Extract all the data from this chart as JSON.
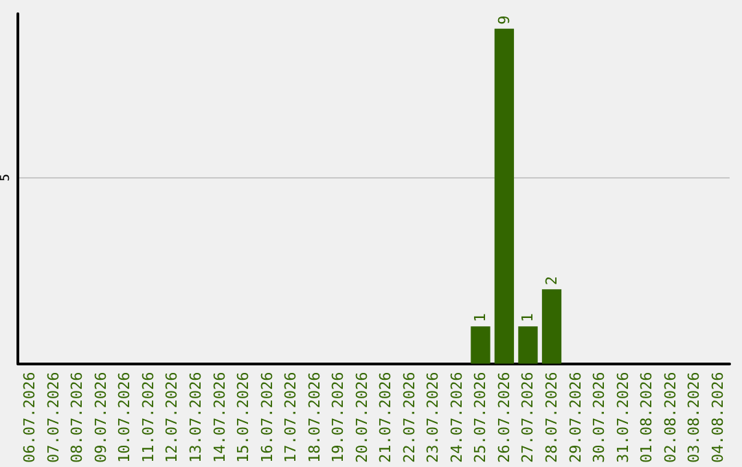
{
  "chart_data": {
    "type": "bar",
    "categories": [
      "06.07.2026",
      "07.07.2026",
      "08.07.2026",
      "09.07.2026",
      "10.07.2026",
      "11.07.2026",
      "12.07.2026",
      "13.07.2026",
      "14.07.2026",
      "15.07.2026",
      "16.07.2026",
      "17.07.2026",
      "18.07.2026",
      "19.07.2026",
      "20.07.2026",
      "21.07.2026",
      "22.07.2026",
      "23.07.2026",
      "24.07.2026",
      "25.07.2026",
      "26.07.2026",
      "27.07.2026",
      "28.07.2026",
      "29.07.2026",
      "30.07.2026",
      "31.07.2026",
      "01.08.2026",
      "02.08.2026",
      "03.08.2026",
      "04.08.2026"
    ],
    "values": [
      null,
      null,
      null,
      null,
      null,
      null,
      null,
      null,
      null,
      null,
      null,
      null,
      null,
      null,
      null,
      null,
      null,
      null,
      null,
      1,
      9,
      1,
      2,
      null,
      null,
      null,
      null,
      null,
      null,
      null
    ],
    "data_labels": true,
    "color": "#336600",
    "ylim": [
      0,
      9.4
    ],
    "yticks": [
      5
    ],
    "grid": "y"
  }
}
